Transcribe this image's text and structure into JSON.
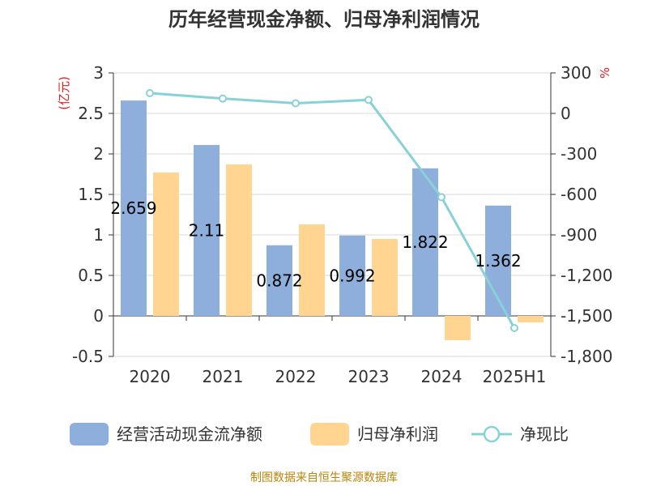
{
  "title": "历年经营现金净额、归母净利润情况",
  "source": "制图数据来自恒生聚源数据库",
  "chart_data": {
    "type": "bar",
    "categories": [
      "2020",
      "2021",
      "2022",
      "2023",
      "2024",
      "2025H1"
    ],
    "y_left": {
      "unit": "(亿元)",
      "ylim": [
        -0.5,
        3
      ],
      "ticks": [
        "-0.5",
        "0",
        "0.5",
        "1",
        "1.5",
        "2",
        "2.5",
        "3"
      ]
    },
    "y_right": {
      "unit": "%",
      "ylim": [
        -1800,
        300
      ],
      "ticks": [
        "-1,800",
        "-1,500",
        "-1,200",
        "-900",
        "-600",
        "-300",
        "0",
        "300"
      ]
    },
    "series": [
      {
        "name": "经营活动现金流净额",
        "type": "bar",
        "axis": "left",
        "color": "#8eaedb",
        "values": [
          2.659,
          2.11,
          0.872,
          0.992,
          1.822,
          1.362
        ],
        "labels": [
          "2.659",
          "2.11",
          "0.872",
          "0.992",
          "1.822",
          "1.362"
        ]
      },
      {
        "name": "归母净利润",
        "type": "bar",
        "axis": "left",
        "color": "#ffd591",
        "values": [
          1.77,
          1.87,
          1.13,
          0.95,
          -0.3,
          -0.08
        ]
      },
      {
        "name": "净现比",
        "type": "line",
        "axis": "right",
        "color": "#88d1d6",
        "values": [
          150,
          110,
          75,
          100,
          -620,
          -1590
        ]
      }
    ],
    "grid": true,
    "legend_position": "bottom"
  }
}
